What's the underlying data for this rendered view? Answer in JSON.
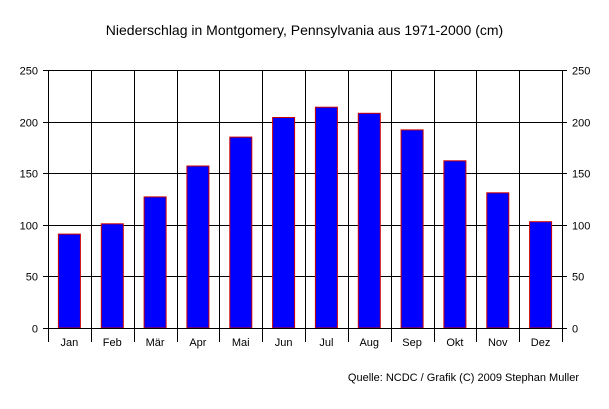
{
  "chart_data": {
    "type": "bar",
    "title": "Niederschlag in Montgomery, Pennsylvania aus 1971-2000 (cm)",
    "source": "Quelle: NCDC / Grafik (C) 2009 Stephan Muller",
    "categories": [
      "Jan",
      "Feb",
      "Mär",
      "Apr",
      "Mai",
      "Jun",
      "Jul",
      "Aug",
      "Sep",
      "Okt",
      "Nov",
      "Dez"
    ],
    "values": [
      91,
      101,
      127,
      157,
      185,
      204,
      214,
      208,
      192,
      162,
      131,
      103
    ],
    "ylim": [
      0,
      250
    ],
    "yticks": [
      0,
      50,
      100,
      150,
      200,
      250
    ],
    "grid": true,
    "secondary_y_axis": true,
    "colors": {
      "bar_fill": "#0000ff",
      "bar_edge": "#cc0000",
      "grid": "#000000"
    }
  }
}
